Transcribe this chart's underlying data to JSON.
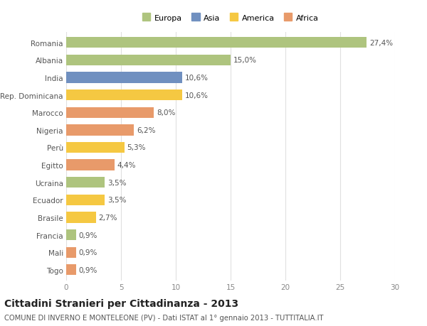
{
  "countries": [
    "Romania",
    "Albania",
    "India",
    "Rep. Dominicana",
    "Marocco",
    "Nigeria",
    "Perù",
    "Egitto",
    "Ucraina",
    "Ecuador",
    "Brasile",
    "Francia",
    "Mali",
    "Togo"
  ],
  "values": [
    27.4,
    15.0,
    10.6,
    10.6,
    8.0,
    6.2,
    5.3,
    4.4,
    3.5,
    3.5,
    2.7,
    0.9,
    0.9,
    0.9
  ],
  "labels": [
    "27,4%",
    "15,0%",
    "10,6%",
    "10,6%",
    "8,0%",
    "6,2%",
    "5,3%",
    "4,4%",
    "3,5%",
    "3,5%",
    "2,7%",
    "0,9%",
    "0,9%",
    "0,9%"
  ],
  "colors": [
    "#aec47e",
    "#aec47e",
    "#7090c0",
    "#f5c842",
    "#e89a6a",
    "#e89a6a",
    "#f5c842",
    "#e89a6a",
    "#aec47e",
    "#f5c842",
    "#f5c842",
    "#aec47e",
    "#e89a6a",
    "#e89a6a"
  ],
  "legend_labels": [
    "Europa",
    "Asia",
    "America",
    "Africa"
  ],
  "legend_colors": [
    "#aec47e",
    "#7090c0",
    "#f5c842",
    "#e89a6a"
  ],
  "title": "Cittadini Stranieri per Cittadinanza - 2013",
  "subtitle": "COMUNE DI INVERNO E MONTELEONE (PV) - Dati ISTAT al 1° gennaio 2013 - TUTTITALIA.IT",
  "xlim": [
    0,
    30
  ],
  "xticks": [
    0,
    5,
    10,
    15,
    20,
    25,
    30
  ],
  "bg_color": "#ffffff",
  "grid_color": "#e0e0e0",
  "label_fontsize": 7.5,
  "tick_fontsize": 7.5,
  "title_fontsize": 10,
  "subtitle_fontsize": 7.2,
  "bar_height": 0.62
}
